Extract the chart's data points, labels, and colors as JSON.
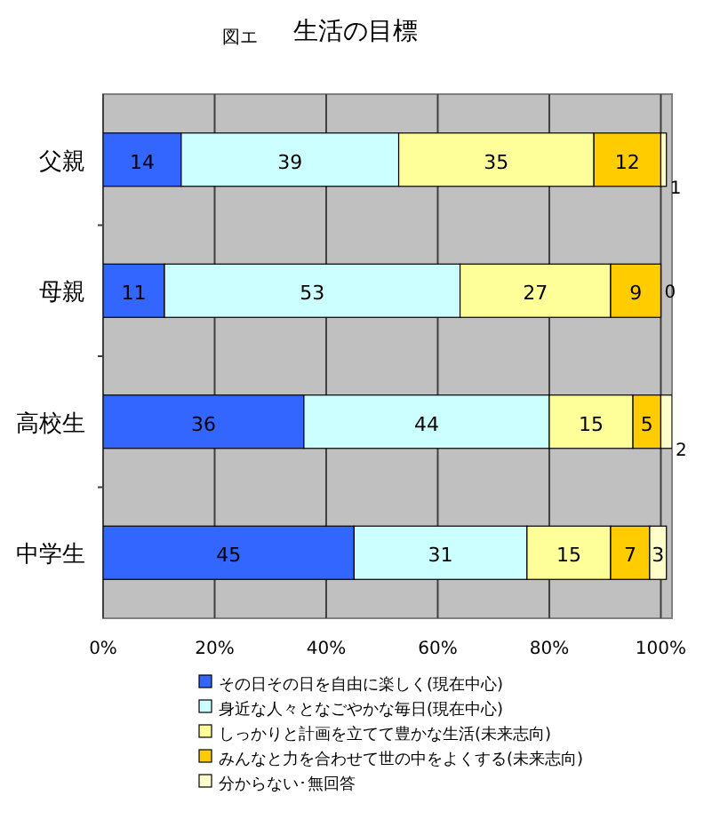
{
  "chart_data": {
    "type": "bar",
    "orientation": "horizontal",
    "stacked": true,
    "title": "生活の目標",
    "annotations": [
      "図エ"
    ],
    "categories": [
      "父親",
      "母親",
      "高校生",
      "中学生"
    ],
    "series": [
      {
        "name": "その日その日を自由に楽しく(現在中心)",
        "color": "#3366ff",
        "values": [
          14,
          11,
          36,
          45
        ]
      },
      {
        "name": "身近な人々となごやかな毎日(現在中心)",
        "color": "#ccffff",
        "values": [
          39,
          53,
          44,
          31
        ]
      },
      {
        "name": "しっかりと計画を立てて豊かな生活(未来志向)",
        "color": "#ffff99",
        "values": [
          35,
          27,
          15,
          15
        ]
      },
      {
        "name": "みんなと力を合わせて世の中をよくする(未来志向)",
        "color": "#ffcc00",
        "values": [
          12,
          9,
          5,
          7
        ]
      },
      {
        "name": "分からない･無回答",
        "color": "#ffffcc",
        "values": [
          1,
          0,
          2,
          3
        ]
      }
    ],
    "xlim": [
      0,
      102
    ],
    "xticks": [
      {
        "value": 0,
        "label": "0%"
      },
      {
        "value": 20,
        "label": "20%"
      },
      {
        "value": 40,
        "label": "40%"
      },
      {
        "value": 60,
        "label": "60%"
      },
      {
        "value": 80,
        "label": "80%"
      },
      {
        "value": 100,
        "label": "100%"
      }
    ],
    "data_labels": true,
    "grid": "x",
    "legend": "bottom"
  }
}
